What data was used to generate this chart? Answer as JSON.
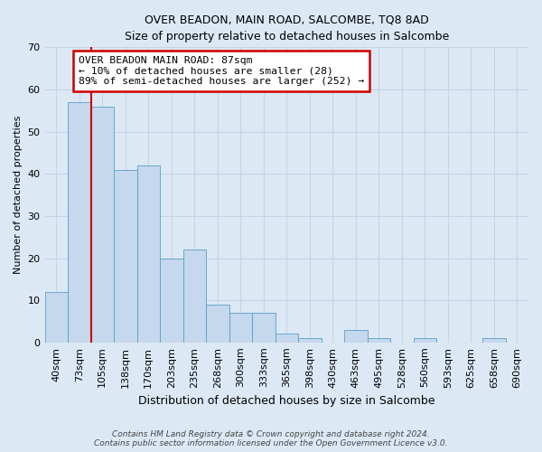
{
  "title": "OVER BEADON, MAIN ROAD, SALCOMBE, TQ8 8AD",
  "subtitle": "Size of property relative to detached houses in Salcombe",
  "xlabel": "Distribution of detached houses by size in Salcombe",
  "ylabel": "Number of detached properties",
  "bar_labels": [
    "40sqm",
    "73sqm",
    "105sqm",
    "138sqm",
    "170sqm",
    "203sqm",
    "235sqm",
    "268sqm",
    "300sqm",
    "333sqm",
    "365sqm",
    "398sqm",
    "430sqm",
    "463sqm",
    "495sqm",
    "528sqm",
    "560sqm",
    "593sqm",
    "625sqm",
    "658sqm",
    "690sqm"
  ],
  "bar_values": [
    12,
    57,
    56,
    41,
    42,
    20,
    22,
    9,
    7,
    7,
    2,
    1,
    0,
    3,
    1,
    0,
    1,
    0,
    0,
    1,
    0
  ],
  "bar_color": "#c5d8ed",
  "bar_edgecolor": "#5a9ec8",
  "vline_color": "#cc0000",
  "vline_x": 1.5,
  "annotation_text": "OVER BEADON MAIN ROAD: 87sqm\n← 10% of detached houses are smaller (28)\n89% of semi-detached houses are larger (252) →",
  "annotation_box_edgecolor": "#cc0000",
  "ylim": [
    0,
    70
  ],
  "yticks": [
    0,
    10,
    20,
    30,
    40,
    50,
    60,
    70
  ],
  "grid_color": "#c5d4e3",
  "background_color": "#dce9f5",
  "footer_line1": "Contains HM Land Registry data © Crown copyright and database right 2024.",
  "footer_line2": "Contains public sector information licensed under the Open Government Licence v3.0."
}
